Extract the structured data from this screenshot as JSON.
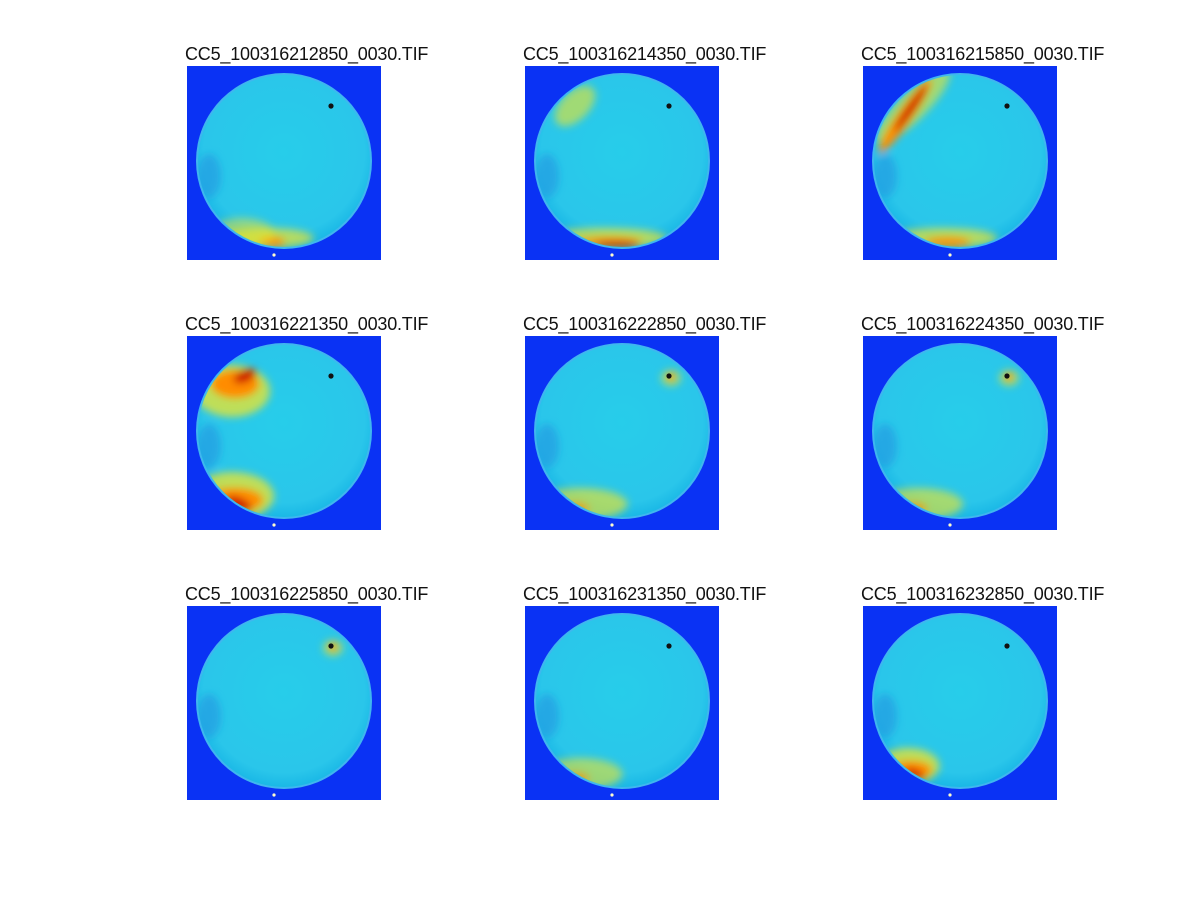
{
  "colors": {
    "background": "#0a32f4",
    "disk": "#27cdea",
    "rim": "#1ab8e6",
    "hot": "#f0e628",
    "hotter": "#ff8c00",
    "hottest": "#cc0000",
    "core": "#6a0000"
  },
  "panels": [
    {
      "title": "CC5_100316212850_0030.TIF",
      "hotspots": [
        {
          "type": "south-arc",
          "level": 0.35
        },
        {
          "type": "sw-glow",
          "level": 0.15
        }
      ]
    },
    {
      "title": "CC5_100316214350_0030.TIF",
      "hotspots": [
        {
          "type": "south-arc",
          "level": 0.85
        },
        {
          "type": "nw-arc",
          "level": 0.5
        }
      ]
    },
    {
      "title": "CC5_100316215850_0030.TIF",
      "hotspots": [
        {
          "type": "nw-arc",
          "level": 1.0
        },
        {
          "type": "south-arc",
          "level": 0.6
        }
      ]
    },
    {
      "title": "CC5_100316221350_0030.TIF",
      "hotspots": [
        {
          "type": "nw-blob",
          "level": 1.0
        },
        {
          "type": "sw-blob",
          "level": 1.0
        }
      ]
    },
    {
      "title": "CC5_100316222850_0030.TIF",
      "hotspots": [
        {
          "type": "sw-glow",
          "level": 0.45
        },
        {
          "type": "ne-dot",
          "level": 0.3
        }
      ]
    },
    {
      "title": "CC5_100316224350_0030.TIF",
      "hotspots": [
        {
          "type": "sw-glow",
          "level": 0.4
        },
        {
          "type": "ne-dot",
          "level": 0.3
        }
      ]
    },
    {
      "title": "CC5_100316225850_0030.TIF",
      "hotspots": [
        {
          "type": "ne-dot",
          "level": 0.35
        }
      ]
    },
    {
      "title": "CC5_100316231350_0030.TIF",
      "hotspots": [
        {
          "type": "sw-glow",
          "level": 0.35
        }
      ]
    },
    {
      "title": "CC5_100316232850_0030.TIF",
      "hotspots": [
        {
          "type": "sw-blob",
          "level": 0.75
        }
      ]
    }
  ]
}
